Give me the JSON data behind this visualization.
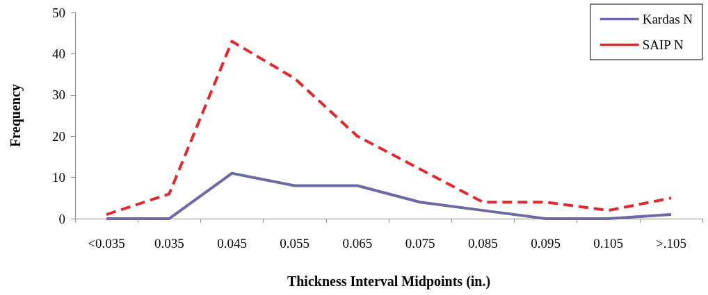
{
  "chart_data": {
    "type": "line",
    "xlabel": "Thickness Interval Midpoints (in.)",
    "ylabel": "Frequency",
    "categories": [
      "<0.035",
      "0.035",
      "0.045",
      "0.055",
      "0.065",
      "0.075",
      "0.085",
      "0.095",
      "0.105",
      ">.105"
    ],
    "series": [
      {
        "name": "Kardas N",
        "color": "#6b6aa6",
        "line_style": "solid",
        "values": [
          0,
          0,
          11,
          8,
          8,
          4,
          2,
          0,
          0,
          1
        ]
      },
      {
        "name": "SAIP N",
        "color": "#e0282e",
        "line_style": "dashed",
        "values": [
          1,
          6,
          43,
          34,
          20,
          12,
          4,
          4,
          2,
          5
        ]
      }
    ],
    "ylim": [
      0,
      50
    ],
    "yticks": [
      0,
      10,
      20,
      30,
      40,
      50
    ],
    "grid": false,
    "legend": "top right",
    "marker": "none"
  }
}
